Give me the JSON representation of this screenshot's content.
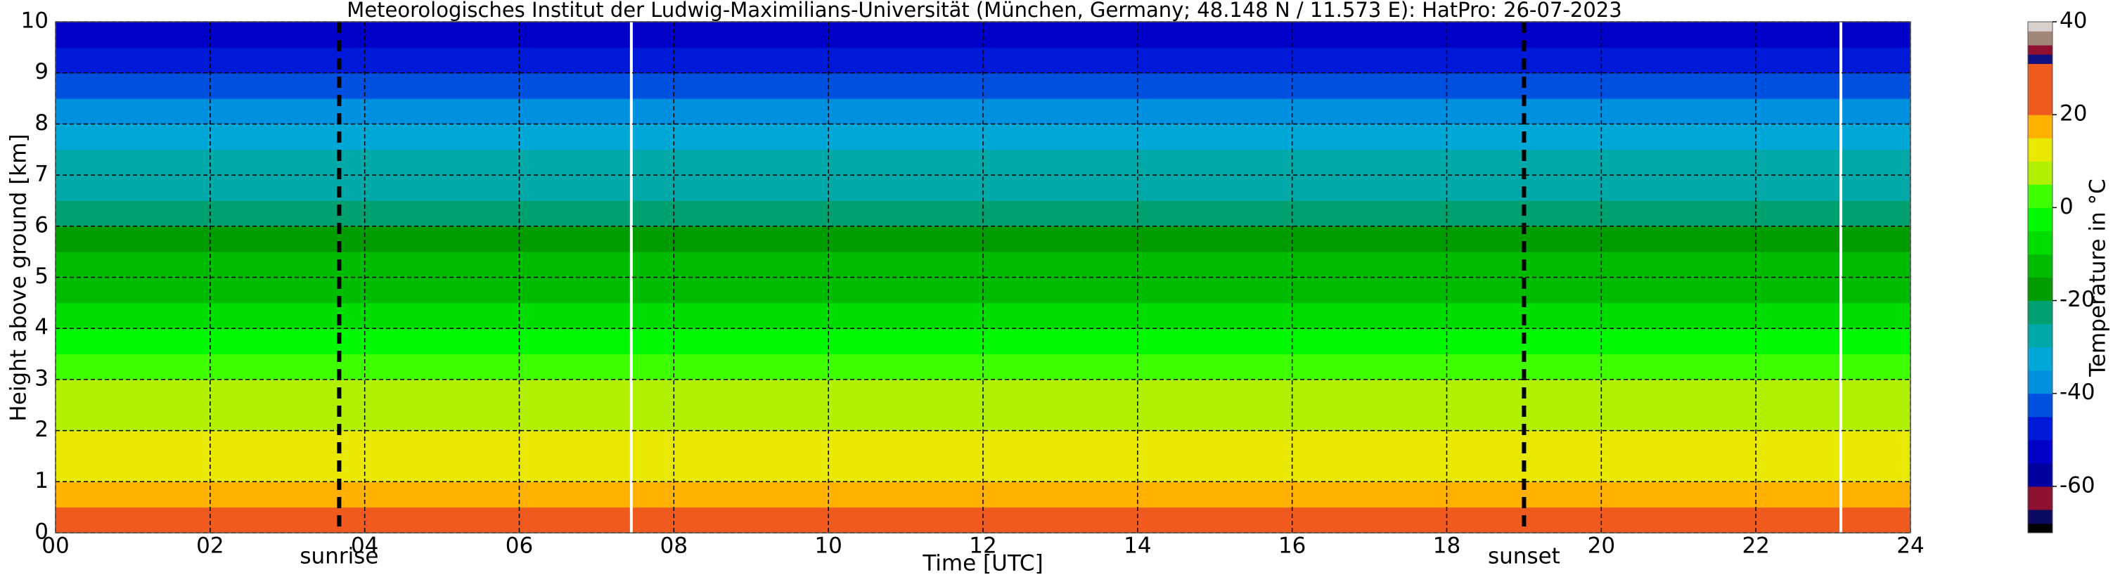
{
  "chart_data": {
    "type": "heatmap",
    "title": "Meteorologisches Institut der Ludwig-Maximilians-Universität (München, Germany; 48.148 N / 11.573 E):    HatPro: 26-07-2023",
    "x_label": "Time [UTC]",
    "y_label": "Height above ground [km]",
    "colorbar_label": "Temperature in °C",
    "xlim": [
      0,
      24
    ],
    "xticks": [
      {
        "value": 0,
        "label": "00"
      },
      {
        "value": 2,
        "label": "02"
      },
      {
        "value": 4,
        "label": "04"
      },
      {
        "value": 6,
        "label": "06"
      },
      {
        "value": 8,
        "label": "08"
      },
      10,
      12,
      14,
      16,
      18,
      20,
      22,
      24
    ],
    "ylim": [
      0,
      10
    ],
    "yticks": [
      0,
      1,
      2,
      3,
      4,
      5,
      6,
      7,
      8,
      9,
      10
    ],
    "y_edges": [
      0,
      0.5,
      1,
      1.5,
      2,
      2.5,
      3,
      3.5,
      4,
      4.5,
      5,
      5.5,
      6,
      6.5,
      7,
      7.5,
      8,
      8.5,
      9,
      9.5,
      10
    ],
    "values": [
      21,
      17,
      14,
      11,
      8,
      5,
      1,
      -3,
      -7,
      -11,
      -15,
      -18,
      -22,
      -26,
      -30,
      -35,
      -39,
      -43,
      -49,
      -53
    ],
    "clim": [
      -70,
      40
    ],
    "cticks": [
      -60,
      -40,
      -20,
      0,
      20,
      40
    ],
    "colormap": [
      [
        -70,
        "#000000"
      ],
      [
        -68,
        "#0a0a60"
      ],
      [
        -65,
        "#8c1030"
      ],
      [
        -60,
        "#0000a0"
      ],
      [
        -55,
        "#0000c8"
      ],
      [
        -50,
        "#0018d8"
      ],
      [
        -45,
        "#0050e0"
      ],
      [
        -40,
        "#0090e0"
      ],
      [
        -35,
        "#00a8d8"
      ],
      [
        -30,
        "#00a8a8"
      ],
      [
        -25,
        "#00a070"
      ],
      [
        -20,
        "#009c00"
      ],
      [
        -15,
        "#00bc00"
      ],
      [
        -10,
        "#00dc00"
      ],
      [
        -5,
        "#00f800"
      ],
      [
        0,
        "#40ff00"
      ],
      [
        5,
        "#b0f000"
      ],
      [
        10,
        "#e8e800"
      ],
      [
        15,
        "#ffb000"
      ],
      [
        20,
        "#f05a1e"
      ],
      [
        31,
        "#101080"
      ],
      [
        33,
        "#901030"
      ],
      [
        35,
        "#a08878"
      ],
      [
        38,
        "#d8d0cc"
      ]
    ],
    "missing_times": [
      7.45,
      23.1
    ],
    "events": [
      {
        "label": "sunrise",
        "x": 3.67
      },
      {
        "label": "sunset",
        "x": 19.0
      }
    ],
    "grid": true
  }
}
